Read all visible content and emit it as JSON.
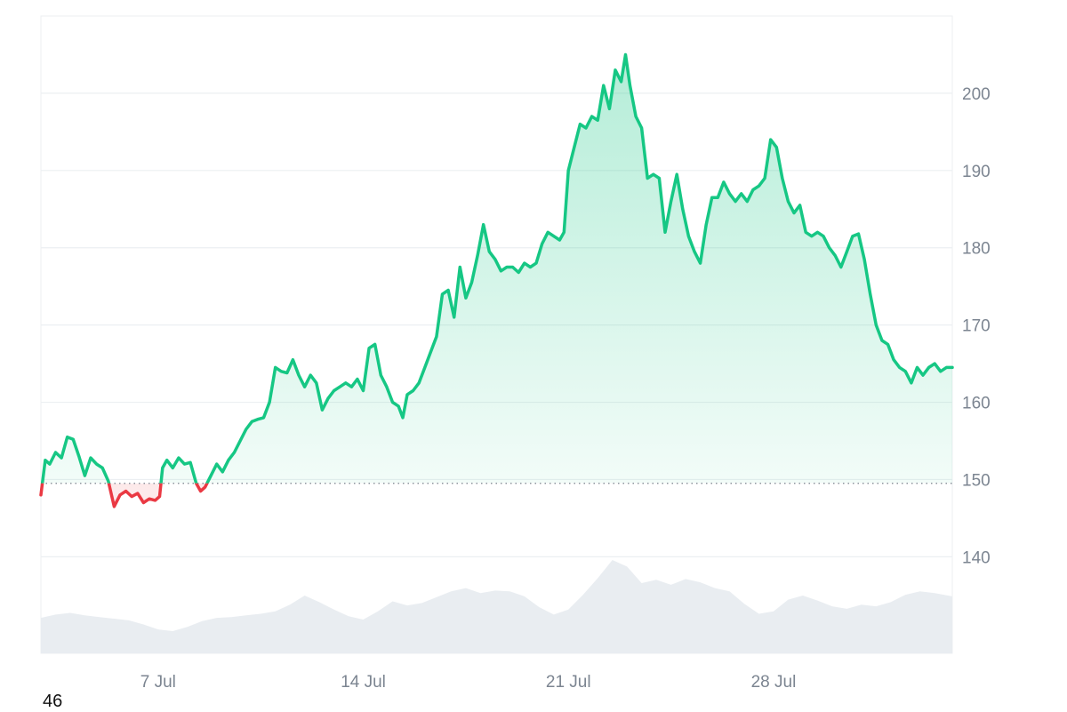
{
  "footer_label": "46",
  "chart_data": {
    "type": "area",
    "y_axis_position": "right",
    "grid": true,
    "ylim": [
      127.5,
      210
    ],
    "y_ticks": [
      140,
      150,
      160,
      170,
      180,
      190,
      200
    ],
    "x_ticks": [
      {
        "label": "7 Jul",
        "day": 7
      },
      {
        "label": "14 Jul",
        "day": 14
      },
      {
        "label": "21 Jul",
        "day": 21
      },
      {
        "label": "28 Jul",
        "day": 28
      }
    ],
    "x_range_days": [
      3.0,
      34.1
    ],
    "baseline": 149.5,
    "colors": {
      "up": "#16c784",
      "down": "#ea3943",
      "volume": "#e9edf1",
      "grid": "#eceff2"
    },
    "price": [
      [
        3.0,
        148.0
      ],
      [
        3.15,
        152.5
      ],
      [
        3.3,
        152.0
      ],
      [
        3.5,
        153.5
      ],
      [
        3.7,
        152.8
      ],
      [
        3.9,
        155.5
      ],
      [
        4.1,
        155.2
      ],
      [
        4.3,
        153.0
      ],
      [
        4.5,
        150.5
      ],
      [
        4.7,
        152.8
      ],
      [
        4.9,
        152.0
      ],
      [
        5.1,
        151.5
      ],
      [
        5.3,
        149.8
      ],
      [
        5.5,
        146.5
      ],
      [
        5.7,
        148.0
      ],
      [
        5.9,
        148.5
      ],
      [
        6.1,
        147.8
      ],
      [
        6.3,
        148.2
      ],
      [
        6.5,
        147.0
      ],
      [
        6.7,
        147.5
      ],
      [
        6.9,
        147.3
      ],
      [
        7.05,
        147.8
      ],
      [
        7.15,
        151.5
      ],
      [
        7.3,
        152.5
      ],
      [
        7.5,
        151.5
      ],
      [
        7.7,
        152.8
      ],
      [
        7.9,
        152.0
      ],
      [
        8.1,
        152.2
      ],
      [
        8.3,
        149.5
      ],
      [
        8.45,
        148.5
      ],
      [
        8.6,
        149.0
      ],
      [
        8.8,
        150.5
      ],
      [
        9.0,
        152.0
      ],
      [
        9.2,
        151.0
      ],
      [
        9.4,
        152.5
      ],
      [
        9.6,
        153.5
      ],
      [
        9.8,
        155.0
      ],
      [
        10.0,
        156.5
      ],
      [
        10.2,
        157.5
      ],
      [
        10.4,
        157.8
      ],
      [
        10.6,
        158.0
      ],
      [
        10.8,
        160.0
      ],
      [
        11.0,
        164.5
      ],
      [
        11.2,
        164.0
      ],
      [
        11.4,
        163.8
      ],
      [
        11.6,
        165.5
      ],
      [
        11.8,
        163.5
      ],
      [
        12.0,
        162.0
      ],
      [
        12.2,
        163.5
      ],
      [
        12.4,
        162.5
      ],
      [
        12.6,
        159.0
      ],
      [
        12.8,
        160.5
      ],
      [
        13.0,
        161.5
      ],
      [
        13.2,
        162.0
      ],
      [
        13.4,
        162.5
      ],
      [
        13.6,
        162.0
      ],
      [
        13.8,
        163.0
      ],
      [
        14.0,
        161.5
      ],
      [
        14.2,
        167.0
      ],
      [
        14.4,
        167.5
      ],
      [
        14.6,
        163.5
      ],
      [
        14.8,
        162.0
      ],
      [
        15.0,
        160.0
      ],
      [
        15.2,
        159.5
      ],
      [
        15.35,
        158.0
      ],
      [
        15.5,
        161.0
      ],
      [
        15.7,
        161.5
      ],
      [
        15.9,
        162.5
      ],
      [
        16.1,
        164.5
      ],
      [
        16.3,
        166.5
      ],
      [
        16.5,
        168.5
      ],
      [
        16.7,
        174.0
      ],
      [
        16.9,
        174.5
      ],
      [
        17.1,
        171.0
      ],
      [
        17.3,
        177.5
      ],
      [
        17.5,
        173.5
      ],
      [
        17.7,
        175.5
      ],
      [
        17.9,
        179.0
      ],
      [
        18.1,
        183.0
      ],
      [
        18.3,
        179.5
      ],
      [
        18.5,
        178.5
      ],
      [
        18.7,
        177.0
      ],
      [
        18.9,
        177.5
      ],
      [
        19.1,
        177.5
      ],
      [
        19.3,
        176.8
      ],
      [
        19.5,
        178.0
      ],
      [
        19.7,
        177.5
      ],
      [
        19.9,
        178.0
      ],
      [
        20.1,
        180.5
      ],
      [
        20.3,
        182.0
      ],
      [
        20.5,
        181.5
      ],
      [
        20.7,
        181.0
      ],
      [
        20.85,
        182.0
      ],
      [
        21.0,
        190.0
      ],
      [
        21.2,
        193.0
      ],
      [
        21.4,
        196.0
      ],
      [
        21.6,
        195.5
      ],
      [
        21.8,
        197.0
      ],
      [
        22.0,
        196.5
      ],
      [
        22.2,
        201.0
      ],
      [
        22.4,
        198.0
      ],
      [
        22.6,
        203.0
      ],
      [
        22.8,
        201.5
      ],
      [
        22.95,
        205.0
      ],
      [
        23.1,
        201.0
      ],
      [
        23.3,
        197.0
      ],
      [
        23.5,
        195.5
      ],
      [
        23.7,
        189.0
      ],
      [
        23.9,
        189.5
      ],
      [
        24.1,
        189.0
      ],
      [
        24.3,
        182.0
      ],
      [
        24.5,
        186.0
      ],
      [
        24.7,
        189.5
      ],
      [
        24.9,
        185.0
      ],
      [
        25.1,
        181.5
      ],
      [
        25.3,
        179.5
      ],
      [
        25.5,
        178.0
      ],
      [
        25.7,
        183.0
      ],
      [
        25.9,
        186.5
      ],
      [
        26.1,
        186.5
      ],
      [
        26.3,
        188.5
      ],
      [
        26.5,
        187.0
      ],
      [
        26.7,
        186.0
      ],
      [
        26.9,
        187.0
      ],
      [
        27.1,
        186.0
      ],
      [
        27.3,
        187.5
      ],
      [
        27.5,
        188.0
      ],
      [
        27.7,
        189.0
      ],
      [
        27.9,
        194.0
      ],
      [
        28.1,
        193.0
      ],
      [
        28.3,
        189.0
      ],
      [
        28.5,
        186.0
      ],
      [
        28.7,
        184.5
      ],
      [
        28.9,
        185.5
      ],
      [
        29.1,
        182.0
      ],
      [
        29.3,
        181.5
      ],
      [
        29.5,
        182.0
      ],
      [
        29.7,
        181.5
      ],
      [
        29.9,
        180.0
      ],
      [
        30.1,
        179.0
      ],
      [
        30.3,
        177.5
      ],
      [
        30.5,
        179.5
      ],
      [
        30.7,
        181.5
      ],
      [
        30.9,
        181.8
      ],
      [
        31.1,
        178.5
      ],
      [
        31.3,
        174.0
      ],
      [
        31.5,
        170.0
      ],
      [
        31.7,
        168.0
      ],
      [
        31.9,
        167.5
      ],
      [
        32.1,
        165.5
      ],
      [
        32.3,
        164.5
      ],
      [
        32.5,
        164.0
      ],
      [
        32.7,
        162.5
      ],
      [
        32.9,
        164.5
      ],
      [
        33.1,
        163.5
      ],
      [
        33.3,
        164.5
      ],
      [
        33.5,
        165.0
      ],
      [
        33.7,
        164.0
      ],
      [
        33.9,
        164.5
      ],
      [
        34.1,
        164.5
      ]
    ],
    "volume_relative": [
      [
        3.0,
        0.3
      ],
      [
        3.5,
        0.34
      ],
      [
        4.0,
        0.36
      ],
      [
        4.5,
        0.33
      ],
      [
        5.0,
        0.31
      ],
      [
        5.5,
        0.29
      ],
      [
        6.0,
        0.27
      ],
      [
        6.5,
        0.22
      ],
      [
        7.0,
        0.16
      ],
      [
        7.5,
        0.14
      ],
      [
        8.0,
        0.19
      ],
      [
        8.5,
        0.26
      ],
      [
        9.0,
        0.3
      ],
      [
        9.5,
        0.31
      ],
      [
        10.0,
        0.33
      ],
      [
        10.5,
        0.35
      ],
      [
        11.0,
        0.38
      ],
      [
        11.5,
        0.46
      ],
      [
        12.0,
        0.57
      ],
      [
        12.5,
        0.49
      ],
      [
        13.0,
        0.4
      ],
      [
        13.5,
        0.32
      ],
      [
        14.0,
        0.28
      ],
      [
        14.5,
        0.38
      ],
      [
        15.0,
        0.5
      ],
      [
        15.5,
        0.45
      ],
      [
        16.0,
        0.48
      ],
      [
        16.5,
        0.55
      ],
      [
        17.0,
        0.62
      ],
      [
        17.5,
        0.66
      ],
      [
        18.0,
        0.6
      ],
      [
        18.5,
        0.63
      ],
      [
        19.0,
        0.62
      ],
      [
        19.5,
        0.56
      ],
      [
        20.0,
        0.43
      ],
      [
        20.5,
        0.34
      ],
      [
        21.0,
        0.4
      ],
      [
        21.5,
        0.58
      ],
      [
        22.0,
        0.78
      ],
      [
        22.5,
        1.0
      ],
      [
        23.0,
        0.92
      ],
      [
        23.5,
        0.72
      ],
      [
        24.0,
        0.76
      ],
      [
        24.5,
        0.7
      ],
      [
        25.0,
        0.77
      ],
      [
        25.5,
        0.73
      ],
      [
        26.0,
        0.66
      ],
      [
        26.5,
        0.62
      ],
      [
        27.0,
        0.47
      ],
      [
        27.5,
        0.35
      ],
      [
        28.0,
        0.38
      ],
      [
        28.5,
        0.52
      ],
      [
        29.0,
        0.57
      ],
      [
        29.5,
        0.51
      ],
      [
        30.0,
        0.44
      ],
      [
        30.5,
        0.41
      ],
      [
        31.0,
        0.46
      ],
      [
        31.5,
        0.44
      ],
      [
        32.0,
        0.49
      ],
      [
        32.5,
        0.58
      ],
      [
        33.0,
        0.62
      ],
      [
        33.5,
        0.6
      ],
      [
        34.1,
        0.56
      ]
    ]
  }
}
